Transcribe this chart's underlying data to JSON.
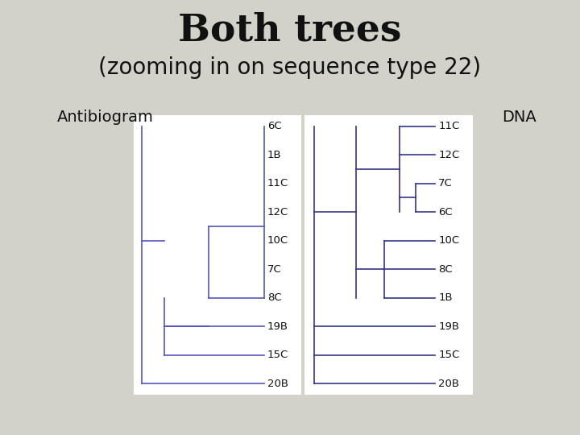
{
  "title": "Both trees",
  "subtitle": "(zooming in on sequence type 22)",
  "label_left": "Antibiogram",
  "label_right": "DNA",
  "bg_color": "#d2d2ca",
  "line_color_t1": "#5555bb",
  "line_color_t2": "#333388",
  "title_fontsize": 34,
  "subtitle_fontsize": 20,
  "label_fontsize": 14,
  "leaf_fontsize": 9.5,
  "tree1_leaves": [
    "6C",
    "1B",
    "11C",
    "12C",
    "10C",
    "7C",
    "8C",
    "19B",
    "15C",
    "20B"
  ],
  "tree2_leaves": [
    "11C",
    "12C",
    "7C",
    "6C",
    "10C",
    "8C",
    "1B",
    "19B",
    "15C",
    "20B"
  ],
  "t1_xl": 0.235,
  "t1_xr": 0.455,
  "t2_xl": 0.53,
  "t2_xr": 0.75,
  "tree_yt": 0.71,
  "tree_yb": 0.118
}
